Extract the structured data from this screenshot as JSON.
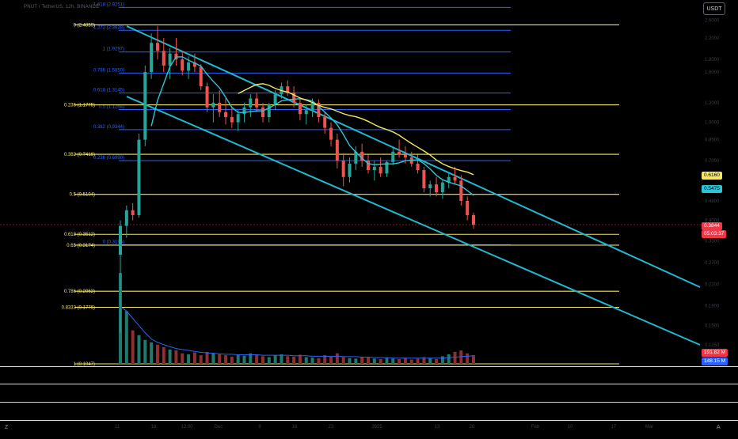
{
  "header": {
    "symbol_text": "PNUT / TetherUS, 12h, BINANCE"
  },
  "currency_button": "USDT",
  "price_tags": [
    {
      "label": "0.6160",
      "bg": "#f5e663",
      "fg": "#000000"
    },
    {
      "label": "0.5475",
      "bg": "#2ec4d6",
      "fg": "#000000"
    },
    {
      "label": "0.3844",
      "bg": "#f23645",
      "fg": "#ffffff"
    },
    {
      "label": "05:03:37",
      "bg": "#f23645",
      "fg": "#ffffff"
    },
    {
      "label": "191.82 M",
      "bg": "#f23645",
      "fg": "#ffffff"
    },
    {
      "label": "148.15 M",
      "bg": "#2962ff",
      "fg": "#ffffff"
    }
  ],
  "bottom_icons": {
    "left": "Z",
    "right": "A"
  },
  "chart_data": {
    "type": "candlestick",
    "colors": {
      "up": "#26a69a",
      "down": "#ef5350",
      "fib_blue": "#2962ff",
      "fib_yellow": "#f5e663",
      "channel": "#22b8cf",
      "ma_fast": "#2ec4d6",
      "ma_slow": "#f5e663"
    },
    "y_scale": "log",
    "fib_blue_levels": [
      {
        "label": "1.618 (2.9251)",
        "price": 2.9251
      },
      {
        "label": "1.272 (2.3628)",
        "price": 2.3628
      },
      {
        "label": "1 (1.9297)",
        "price": 1.9297
      },
      {
        "label": "0.786 (1.5850)",
        "price": 1.585
      },
      {
        "label": "0.618 (1.3145)",
        "price": 1.3145
      },
      {
        "label": "0.5 (1.1264)",
        "price": 1.1264
      },
      {
        "label": "0.382 (0.9344)",
        "price": 0.9344
      },
      {
        "label": "0.236 (0.6990)",
        "price": 0.699
      },
      {
        "label": "0 (0.3186)",
        "price": 0.3186
      }
    ],
    "fib_yellow_levels": [
      {
        "label": "0 (2.4859)",
        "price": 2.4859
      },
      {
        "label": "0.236 (1.1775)",
        "price": 1.1775
      },
      {
        "label": "0.382 (0.7416)",
        "price": 0.7416
      },
      {
        "label": "0.5 (0.5104)",
        "price": 0.5104
      },
      {
        "label": "0.618 (0.3512)",
        "price": 0.3512
      },
      {
        "label": "0.65 (0.3174)",
        "price": 0.3174
      },
      {
        "label": "0.786 (0.2063)",
        "price": 0.2063
      },
      {
        "label": "0.8333 (0.1776)",
        "price": 0.1776
      },
      {
        "label": "1 (0.1047)",
        "price": 0.1047
      }
    ],
    "y_ticks": [
      "2.6000",
      "2.2000",
      "1.8000",
      "1.6000",
      "1.2000",
      "1.0000",
      "0.8500",
      "0.7000",
      "0.4800",
      "0.4000",
      "0.3300",
      "0.2700",
      "0.2200",
      "0.1800",
      "0.1500",
      "0.1250"
    ],
    "x_ticks": [
      "11",
      "18",
      "12:00",
      "Dec",
      "9",
      "16",
      "23",
      "2025",
      "13",
      "20",
      "Feb",
      "10",
      "17",
      "Mar"
    ],
    "candles": [
      [
        0.29,
        0.4,
        0.14,
        0.38
      ],
      [
        0.38,
        0.46,
        0.34,
        0.44
      ],
      [
        0.44,
        0.47,
        0.4,
        0.42
      ],
      [
        0.42,
        0.9,
        0.41,
        0.85
      ],
      [
        0.85,
        1.7,
        0.8,
        1.6
      ],
      [
        1.6,
        2.3,
        1.5,
        2.1
      ],
      [
        2.1,
        2.45,
        1.8,
        1.95
      ],
      [
        1.95,
        2.2,
        1.6,
        1.7
      ],
      [
        1.7,
        2.0,
        1.5,
        1.9
      ],
      [
        1.9,
        2.2,
        1.7,
        1.8
      ],
      [
        1.8,
        1.95,
        1.55,
        1.62
      ],
      [
        1.62,
        1.85,
        1.5,
        1.75
      ],
      [
        1.75,
        1.9,
        1.6,
        1.68
      ],
      [
        1.68,
        1.72,
        1.35,
        1.4
      ],
      [
        1.4,
        1.45,
        1.1,
        1.15
      ],
      [
        1.15,
        1.3,
        1.0,
        1.2
      ],
      [
        1.2,
        1.35,
        1.05,
        1.1
      ],
      [
        1.1,
        1.25,
        0.98,
        1.05
      ],
      [
        1.05,
        1.15,
        0.95,
        1.0
      ],
      [
        1.0,
        1.12,
        0.92,
        1.08
      ],
      [
        1.08,
        1.2,
        1.0,
        1.15
      ],
      [
        1.15,
        1.3,
        1.05,
        1.25
      ],
      [
        1.25,
        1.32,
        1.1,
        1.15
      ],
      [
        1.15,
        1.2,
        1.0,
        1.05
      ],
      [
        1.05,
        1.2,
        1.0,
        1.18
      ],
      [
        1.18,
        1.35,
        1.12,
        1.3
      ],
      [
        1.3,
        1.45,
        1.25,
        1.4
      ],
      [
        1.4,
        1.48,
        1.28,
        1.32
      ],
      [
        1.32,
        1.4,
        1.15,
        1.2
      ],
      [
        1.2,
        1.25,
        1.02,
        1.08
      ],
      [
        1.08,
        1.18,
        0.98,
        1.12
      ],
      [
        1.12,
        1.25,
        1.05,
        1.2
      ],
      [
        1.2,
        1.24,
        1.0,
        1.05
      ],
      [
        1.05,
        1.1,
        0.9,
        0.95
      ],
      [
        0.95,
        1.0,
        0.8,
        0.85
      ],
      [
        0.85,
        0.9,
        0.65,
        0.7
      ],
      [
        0.7,
        0.75,
        0.55,
        0.6
      ],
      [
        0.6,
        0.72,
        0.57,
        0.68
      ],
      [
        0.68,
        0.8,
        0.64,
        0.76
      ],
      [
        0.76,
        0.82,
        0.66,
        0.7
      ],
      [
        0.7,
        0.74,
        0.62,
        0.64
      ],
      [
        0.64,
        0.7,
        0.58,
        0.66
      ],
      [
        0.66,
        0.72,
        0.6,
        0.62
      ],
      [
        0.62,
        0.7,
        0.6,
        0.69
      ],
      [
        0.69,
        0.8,
        0.67,
        0.76
      ],
      [
        0.76,
        0.85,
        0.72,
        0.74
      ],
      [
        0.74,
        0.8,
        0.68,
        0.72
      ],
      [
        0.72,
        0.76,
        0.66,
        0.68
      ],
      [
        0.68,
        0.74,
        0.62,
        0.64
      ],
      [
        0.64,
        0.66,
        0.52,
        0.54
      ],
      [
        0.54,
        0.58,
        0.5,
        0.56
      ],
      [
        0.56,
        0.6,
        0.5,
        0.52
      ],
      [
        0.52,
        0.58,
        0.49,
        0.57
      ],
      [
        0.57,
        0.62,
        0.54,
        0.6
      ],
      [
        0.6,
        0.66,
        0.56,
        0.58
      ],
      [
        0.58,
        0.61,
        0.46,
        0.48
      ],
      [
        0.48,
        0.5,
        0.4,
        0.42
      ],
      [
        0.42,
        0.43,
        0.37,
        0.3844
      ]
    ],
    "volumes": [
      190,
      110,
      70,
      60,
      50,
      45,
      40,
      35,
      30,
      28,
      22,
      20,
      24,
      18,
      25,
      22,
      20,
      18,
      15,
      19,
      17,
      22,
      20,
      16,
      14,
      18,
      20,
      16,
      15,
      19,
      14,
      13,
      12,
      18,
      15,
      22,
      14,
      12,
      11,
      14,
      13,
      11,
      10,
      12,
      11,
      10,
      13,
      9,
      11,
      14,
      12,
      10,
      16,
      20,
      25,
      28,
      22,
      18
    ],
    "volume_ma": [
      120,
      110,
      95,
      80,
      65,
      52,
      45,
      40,
      36,
      32,
      30,
      28,
      26,
      24,
      23,
      22,
      21,
      20,
      20,
      19,
      19,
      19,
      19,
      18,
      18,
      18,
      18,
      18,
      17,
      17,
      17,
      16,
      16,
      16,
      16,
      16,
      15,
      15,
      15,
      14,
      14,
      13,
      13,
      13,
      12,
      12,
      12,
      12,
      12,
      12,
      12,
      12,
      12,
      13,
      14,
      15,
      16,
      17
    ]
  }
}
